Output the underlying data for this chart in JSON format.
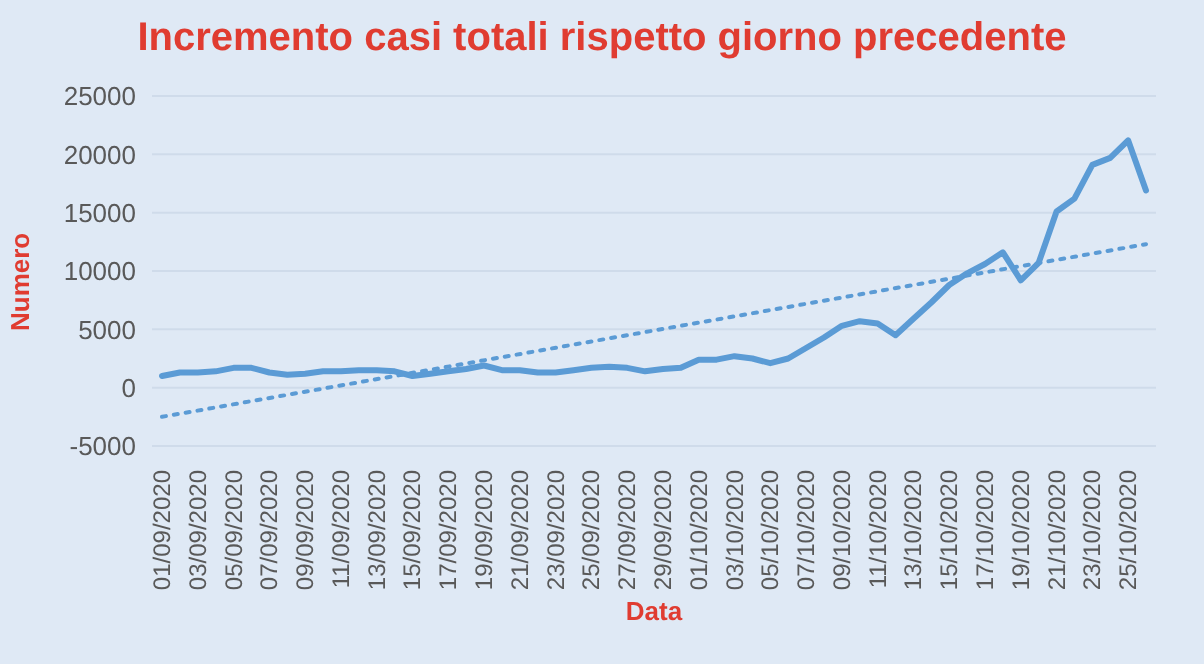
{
  "chart_data": {
    "type": "line",
    "title": "Incremento casi totali rispetto giorno precedente",
    "xlabel": "Data",
    "ylabel": "Numero",
    "categories": [
      "01/09/2020",
      null,
      "03/09/2020",
      null,
      "05/09/2020",
      null,
      "07/09/2020",
      null,
      "09/09/2020",
      null,
      "11/09/2020",
      null,
      "13/09/2020",
      null,
      "15/09/2020",
      null,
      "17/09/2020",
      null,
      "19/09/2020",
      null,
      "21/09/2020",
      null,
      "23/09/2020",
      null,
      "25/09/2020",
      null,
      "27/09/2020",
      null,
      "29/09/2020",
      null,
      "01/10/2020",
      null,
      "03/10/2020",
      null,
      "05/10/2020",
      null,
      "07/10/2020",
      null,
      "09/10/2020",
      null,
      "11/10/2020",
      null,
      "13/10/2020",
      null,
      "15/10/2020",
      null,
      "17/10/2020",
      null,
      "19/10/2020",
      null,
      "21/10/2020",
      null,
      "23/10/2020",
      null,
      "25/10/2020",
      null
    ],
    "series": [
      {
        "color": "#5b9bd5",
        "line_style": "solid",
        "values": [
          1000,
          1300,
          1300,
          1400,
          1700,
          1700,
          1300,
          1100,
          1200,
          1400,
          1400,
          1500,
          1500,
          1400,
          1000,
          1200,
          1400,
          1600,
          1900,
          1500,
          1500,
          1300,
          1300,
          1500,
          1700,
          1800,
          1700,
          1400,
          1600,
          1700,
          2400,
          2400,
          2700,
          2500,
          2100,
          2500,
          3400,
          4300,
          5300,
          5700,
          5500,
          4500,
          5900,
          7300,
          8800,
          9800,
          10600,
          11600,
          9200,
          10700,
          15100,
          16200,
          19100,
          19700,
          21200,
          16900
        ]
      },
      {
        "color": "#5b9bd5",
        "line_style": "dotted",
        "values": [
          -2500,
          null,
          null,
          null,
          null,
          null,
          null,
          null,
          null,
          null,
          null,
          null,
          null,
          null,
          null,
          null,
          null,
          null,
          null,
          null,
          null,
          null,
          null,
          null,
          null,
          null,
          null,
          null,
          null,
          null,
          null,
          null,
          null,
          null,
          null,
          null,
          null,
          null,
          null,
          null,
          null,
          null,
          null,
          null,
          null,
          null,
          null,
          null,
          null,
          null,
          null,
          null,
          null,
          null,
          null,
          12300
        ]
      }
    ],
    "ylim": [
      -5000,
      25000
    ],
    "yticks": [
      -5000,
      0,
      5000,
      10000,
      15000,
      20000,
      25000
    ],
    "grid": "y",
    "legend": false,
    "marker": "none"
  }
}
